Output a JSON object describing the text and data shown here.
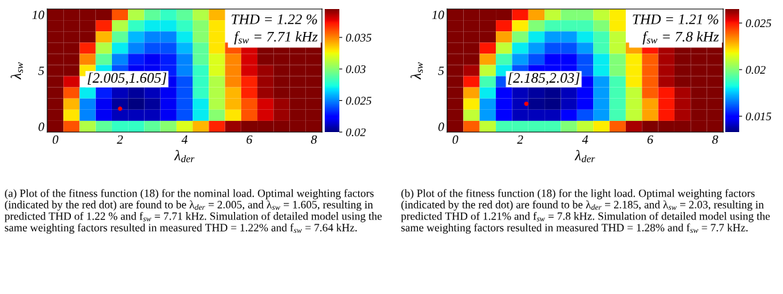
{
  "chart_data": [
    {
      "type": "heatmap",
      "xlabel": "λ$_{der}$",
      "ylabel": "λ$_{sw}$",
      "categories": [
        "0",
        null,
        null,
        null,
        "2",
        null,
        null,
        null,
        "4",
        null,
        null,
        null,
        "6",
        null,
        null,
        null,
        "8"
      ],
      "y_categories": [
        "10",
        null,
        null,
        null,
        null,
        "5",
        null,
        null,
        null,
        null,
        "0"
      ],
      "clim": [
        0.02,
        0.0395
      ],
      "cticks": [
        0.02,
        0.025,
        0.03,
        0.035
      ],
      "cells": [
        [
          0.0395,
          0.0395,
          0.0395,
          0.0395,
          0.036,
          0.031,
          0.029,
          0.028,
          0.029,
          0.031,
          0.034,
          null,
          null,
          null,
          null,
          null,
          null
        ],
        [
          0.0395,
          0.0395,
          0.0395,
          0.037,
          0.031,
          0.028,
          0.027,
          0.027,
          0.028,
          0.03,
          0.033,
          null,
          null,
          null,
          null,
          null,
          null
        ],
        [
          0.0395,
          0.0395,
          0.0395,
          0.034,
          0.029,
          0.026,
          0.025,
          0.025,
          0.027,
          0.03,
          0.033,
          null,
          null,
          null,
          null,
          null,
          null
        ],
        [
          0.0395,
          0.0395,
          0.037,
          0.031,
          0.027,
          0.025,
          0.024,
          0.024,
          0.026,
          0.029,
          0.033,
          0.036,
          0.038,
          0.0395,
          0.0395,
          0.0395,
          0.0395
        ],
        [
          0.0395,
          0.0395,
          0.035,
          0.029,
          0.025,
          0.023,
          0.022,
          0.023,
          0.025,
          0.029,
          0.032,
          0.035,
          0.038,
          0.0395,
          0.0395,
          0.0395,
          0.0395
        ],
        [
          0.0395,
          0.0395,
          0.033,
          0.027,
          0.024,
          0.022,
          0.022,
          0.023,
          0.025,
          0.028,
          0.032,
          0.035,
          0.038,
          0.039,
          0.0395,
          0.0395,
          0.0395
        ],
        [
          0.0395,
          0.038,
          null,
          null,
          null,
          null,
          null,
          0.022,
          0.024,
          0.028,
          0.031,
          0.035,
          0.037,
          0.039,
          0.0395,
          0.0395,
          0.0395
        ],
        [
          0.0395,
          0.036,
          0.027,
          0.023,
          0.021,
          0.0205,
          0.021,
          0.022,
          0.024,
          0.028,
          0.031,
          0.034,
          0.037,
          0.039,
          0.0395,
          0.0395,
          0.0395
        ],
        [
          0.0395,
          0.034,
          0.025,
          0.022,
          0.0205,
          0.02,
          0.0205,
          0.022,
          0.024,
          0.027,
          0.031,
          0.034,
          0.036,
          0.038,
          0.039,
          0.0395,
          0.0395
        ],
        [
          0.0395,
          0.033,
          0.025,
          0.022,
          0.021,
          0.021,
          0.021,
          0.022,
          0.024,
          0.027,
          0.03,
          0.033,
          0.036,
          0.038,
          0.039,
          0.0395,
          0.0395
        ],
        [
          0.0395,
          0.036,
          0.031,
          0.029,
          0.028,
          0.028,
          0.029,
          0.03,
          0.032,
          0.034,
          0.037,
          0.039,
          0.0395,
          0.0395,
          0.0395,
          0.0395,
          0.0395
        ]
      ],
      "annotations": [
        "[2.005,1.605]",
        "THD = 1.22 %\nf$_{sw}$ = 7.71 kHz",
        "(a) Plot of the fitness function (18) for the nominal load. Optimal weighting factors (indicated by the red dot) are found to be λ$_{der}$ = 2.005, and λ$_{sw}$ = 1.605, resulting in predicted THD of 1.22 % and f$_{sw}$ = 7.71 kHz. Simulation of detailed model using the same weighting factors resulted in measured THD = 1.22% and f$_{sw}$ = 7.64 kHz."
      ]
    },
    {
      "type": "heatmap",
      "xlabel": "λ$_{der}$",
      "ylabel": "λ$_{sw}$",
      "categories": [
        "0",
        null,
        null,
        null,
        "2",
        null,
        null,
        null,
        "4",
        null,
        null,
        null,
        "6",
        null,
        null,
        null,
        "8"
      ],
      "y_categories": [
        "10",
        null,
        null,
        null,
        null,
        "5",
        null,
        null,
        null,
        null,
        "0"
      ],
      "clim": [
        0.0133,
        0.0265
      ],
      "cticks": [
        0.015,
        0.02,
        0.025
      ],
      "cells": [
        [
          0.0265,
          0.0265,
          0.0265,
          0.0265,
          0.025,
          0.023,
          0.021,
          0.02,
          0.02,
          0.021,
          0.022,
          null,
          null,
          null,
          null,
          null,
          null
        ],
        [
          0.0265,
          0.0265,
          0.0265,
          0.025,
          0.022,
          0.02,
          0.019,
          0.019,
          0.019,
          0.02,
          0.022,
          null,
          null,
          null,
          null,
          null,
          null
        ],
        [
          0.0265,
          0.0265,
          0.0265,
          0.023,
          0.02,
          0.018,
          0.017,
          0.017,
          0.018,
          0.019,
          0.021,
          null,
          null,
          null,
          null,
          null,
          null
        ],
        [
          0.0265,
          0.0265,
          0.025,
          0.021,
          0.018,
          0.017,
          0.016,
          0.016,
          0.017,
          0.019,
          0.021,
          0.023,
          0.025,
          0.026,
          0.0265,
          0.0265,
          0.0265
        ],
        [
          0.0265,
          0.0265,
          0.023,
          0.019,
          0.017,
          0.016,
          0.015,
          0.015,
          0.016,
          0.018,
          0.02,
          0.022,
          0.024,
          0.026,
          0.0265,
          0.0265,
          0.0265
        ],
        [
          0.0265,
          0.026,
          0.021,
          0.018,
          0.016,
          0.015,
          0.015,
          0.015,
          0.016,
          0.018,
          0.02,
          0.022,
          0.024,
          0.026,
          0.0265,
          0.0265,
          0.0265
        ],
        [
          0.0265,
          0.025,
          0.019,
          0.016,
          null,
          null,
          null,
          null,
          0.015,
          0.017,
          0.019,
          0.022,
          0.024,
          0.026,
          0.0265,
          0.0265,
          0.0265
        ],
        [
          0.0265,
          0.023,
          0.018,
          0.015,
          0.014,
          0.0137,
          0.0135,
          0.014,
          0.015,
          0.017,
          0.019,
          0.021,
          0.024,
          0.025,
          0.026,
          0.0265,
          0.0265
        ],
        [
          0.0265,
          0.022,
          0.017,
          0.015,
          0.014,
          0.0135,
          0.0134,
          0.014,
          0.015,
          0.017,
          0.019,
          0.021,
          0.023,
          0.025,
          0.026,
          0.0265,
          0.0265
        ],
        [
          0.0265,
          0.021,
          0.017,
          0.015,
          0.014,
          0.014,
          0.014,
          0.015,
          0.016,
          0.017,
          0.019,
          0.021,
          0.023,
          0.025,
          0.026,
          0.0265,
          0.0265
        ],
        [
          0.0265,
          0.024,
          0.021,
          0.019,
          0.019,
          0.019,
          0.019,
          0.02,
          0.021,
          0.022,
          0.024,
          0.026,
          0.0265,
          0.0265,
          0.0265,
          0.0265,
          0.0265
        ]
      ],
      "annotations": [
        "[2.185,2.03]",
        "THD = 1.21 %\nf$_{sw}$ = 7.8 kHz",
        "(b) Plot of the fitness function (18) for the light load. Optimal weighting factors (indicated by the red dot) are found to be λ$_{der}$ = 2.185, and λ$_{sw}$ = 2.03, resulting in predicted THD of 1.21% and f$_{sw}$ = 7.8 kHz. Simulation of detailed model using the same weighting factors resulted in measured THD = 1.28% and f$_{sw}$ = 7.7 kHz."
      ]
    }
  ]
}
